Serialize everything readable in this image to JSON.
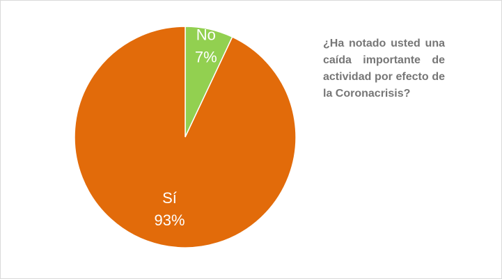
{
  "chart_data": {
    "type": "pie",
    "title": "¿Ha notado usted una caída importante de actividad por efecto de la Coronacrisis?",
    "title_placement": "right",
    "start": "12 o'clock, clockwise",
    "slices": [
      {
        "label": "No",
        "percent_label": "7%",
        "value": 7,
        "color": "#92d050"
      },
      {
        "label": "Sí",
        "percent_label": "93%",
        "value": 93,
        "color": "#e26b0a"
      }
    ],
    "slice_border_color": "#ffffff"
  }
}
